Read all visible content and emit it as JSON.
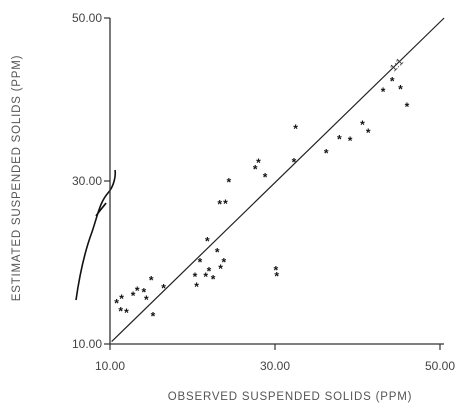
{
  "chart_data": {
    "type": "scatter",
    "xlabel": "OBSERVED SUSPENDED SOLIDS (PPM)",
    "ylabel": "ESTIMATED SUSPENDED SOLIDS (PPM)",
    "xlim": [
      10,
      50
    ],
    "ylim": [
      10,
      50
    ],
    "x_ticks": [
      10,
      30,
      50
    ],
    "x_tick_labels": [
      "10.00",
      "30.00",
      "50.00"
    ],
    "y_ticks": [
      10,
      30,
      50
    ],
    "y_tick_labels": [
      "10.00",
      "30.00",
      "50.00"
    ],
    "grid": false,
    "marker_symbol": "*",
    "annotation": "1:1",
    "fit_line": {
      "x": [
        10.2,
        50.5
      ],
      "y": [
        10.3,
        50.0
      ]
    },
    "points": [
      {
        "x": 10.8,
        "y": 15.0
      },
      {
        "x": 11.4,
        "y": 15.5
      },
      {
        "x": 11.3,
        "y": 14.0
      },
      {
        "x": 12.0,
        "y": 13.8
      },
      {
        "x": 12.8,
        "y": 15.9
      },
      {
        "x": 13.3,
        "y": 16.5
      },
      {
        "x": 14.1,
        "y": 16.3
      },
      {
        "x": 14.4,
        "y": 15.4
      },
      {
        "x": 15.0,
        "y": 17.8
      },
      {
        "x": 15.2,
        "y": 13.4
      },
      {
        "x": 16.5,
        "y": 16.8
      },
      {
        "x": 20.3,
        "y": 18.2
      },
      {
        "x": 20.9,
        "y": 20.0
      },
      {
        "x": 20.5,
        "y": 17.0
      },
      {
        "x": 21.6,
        "y": 18.2
      },
      {
        "x": 22.0,
        "y": 18.9
      },
      {
        "x": 21.8,
        "y": 22.6
      },
      {
        "x": 22.5,
        "y": 17.9
      },
      {
        "x": 23.0,
        "y": 21.2
      },
      {
        "x": 23.4,
        "y": 19.2
      },
      {
        "x": 23.8,
        "y": 20.0
      },
      {
        "x": 23.3,
        "y": 27.1
      },
      {
        "x": 24.0,
        "y": 27.2
      },
      {
        "x": 24.4,
        "y": 29.8
      },
      {
        "x": 27.6,
        "y": 31.4
      },
      {
        "x": 28.0,
        "y": 32.2
      },
      {
        "x": 28.8,
        "y": 30.4
      },
      {
        "x": 30.1,
        "y": 19.0
      },
      {
        "x": 30.2,
        "y": 18.3
      },
      {
        "x": 32.5,
        "y": 36.4
      },
      {
        "x": 32.3,
        "y": 32.3
      },
      {
        "x": 36.2,
        "y": 33.4
      },
      {
        "x": 37.8,
        "y": 35.1
      },
      {
        "x": 39.1,
        "y": 34.9
      },
      {
        "x": 40.6,
        "y": 36.9
      },
      {
        "x": 41.3,
        "y": 35.9
      },
      {
        "x": 43.1,
        "y": 40.9
      },
      {
        "x": 44.2,
        "y": 42.2
      },
      {
        "x": 45.2,
        "y": 41.2
      },
      {
        "x": 46.0,
        "y": 39.1
      }
    ]
  }
}
